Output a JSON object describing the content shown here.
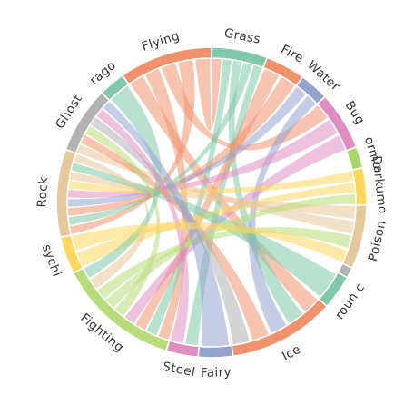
{
  "chart_data": {
    "type": "chord",
    "title": "",
    "groups": [
      {
        "name": "Grass",
        "start_deg": 0,
        "end_deg": 21,
        "color": "#7fc8a9"
      },
      {
        "name": "Fire",
        "start_deg": 21,
        "end_deg": 36,
        "color": "#f0936d"
      },
      {
        "name": "Water",
        "start_deg": 36,
        "end_deg": 47,
        "color": "#95a3cf"
      },
      {
        "name": "Bug",
        "start_deg": 47,
        "end_deg": 69,
        "color": "#e08ec2"
      },
      {
        "name": "ormo",
        "start_deg": 69,
        "end_deg": 77,
        "color": "#a6d96a"
      },
      {
        "name": "Darkumo",
        "start_deg": 77,
        "end_deg": 91,
        "color": "#fdd85d"
      },
      {
        "name": "Poison",
        "start_deg": 91,
        "end_deg": 115,
        "color": "#e7c89a"
      },
      {
        "name": "",
        "start_deg": 115,
        "end_deg": 119,
        "color": "#b3b3b3"
      },
      {
        "name": "roun c",
        "start_deg": 119,
        "end_deg": 132,
        "color": "#7fc8a9"
      },
      {
        "name": "Ice",
        "start_deg": 132,
        "end_deg": 172,
        "color": "#f0936d"
      },
      {
        "name": "Fairy",
        "start_deg": 172,
        "end_deg": 185,
        "color": "#95a3cf"
      },
      {
        "name": "Steel",
        "start_deg": 185,
        "end_deg": 197,
        "color": "#e08ec2"
      },
      {
        "name": "Fighting",
        "start_deg": 197,
        "end_deg": 243,
        "color": "#b9dc7a"
      },
      {
        "name": "sychi",
        "start_deg": 243,
        "end_deg": 257,
        "color": "#fdd85d"
      },
      {
        "name": "Rock",
        "start_deg": 257,
        "end_deg": 290,
        "color": "#e7c89a"
      },
      {
        "name": "Ghost",
        "start_deg": 290,
        "end_deg": 315,
        "color": "#b3b3b3"
      },
      {
        "name": "rago",
        "start_deg": 315,
        "end_deg": 325,
        "color": "#7fc8a9"
      },
      {
        "name": "Flying",
        "start_deg": 325,
        "end_deg": 360,
        "color": "#f0936d"
      }
    ],
    "ribbons": [
      {
        "source": "Flying",
        "target": "Ice"
      },
      {
        "source": "Flying",
        "target": "Fighting"
      },
      {
        "source": "Flying",
        "target": "Bug"
      },
      {
        "source": "Flying",
        "target": "Rock"
      },
      {
        "source": "Flying",
        "target": "Grass"
      },
      {
        "source": "Grass",
        "target": "Fighting"
      },
      {
        "source": "Grass",
        "target": "Ice"
      },
      {
        "source": "Grass",
        "target": "Rock"
      },
      {
        "source": "Grass",
        "target": "Steel"
      },
      {
        "source": "Fire",
        "target": "Fighting"
      },
      {
        "source": "Fire",
        "target": "Rock"
      },
      {
        "source": "Water",
        "target": "Rock"
      },
      {
        "source": "Water",
        "target": "Ice"
      },
      {
        "source": "Bug",
        "target": "Rock"
      },
      {
        "source": "Bug",
        "target": "Fighting"
      },
      {
        "source": "Darkumo",
        "target": "Rock"
      },
      {
        "source": "Darkumo",
        "target": "sychi"
      },
      {
        "source": "Poison",
        "target": "Rock"
      },
      {
        "source": "Poison",
        "target": "Ghost"
      },
      {
        "source": "roun c",
        "target": "Rock"
      },
      {
        "source": "Ice",
        "target": "Ghost"
      },
      {
        "source": "Fighting",
        "target": "Ghost"
      },
      {
        "source": "Fighting",
        "target": "Darkumo"
      },
      {
        "source": "Fighting",
        "target": "Poison"
      },
      {
        "source": "Rock",
        "target": "Fighting"
      },
      {
        "source": "Ghost",
        "target": "Ice"
      },
      {
        "source": "rago",
        "target": "Fighting"
      },
      {
        "source": "Steel",
        "target": "Ghost"
      },
      {
        "source": "Fairy",
        "target": "Ghost"
      },
      {
        "source": "sychi",
        "target": "Poison"
      }
    ]
  }
}
